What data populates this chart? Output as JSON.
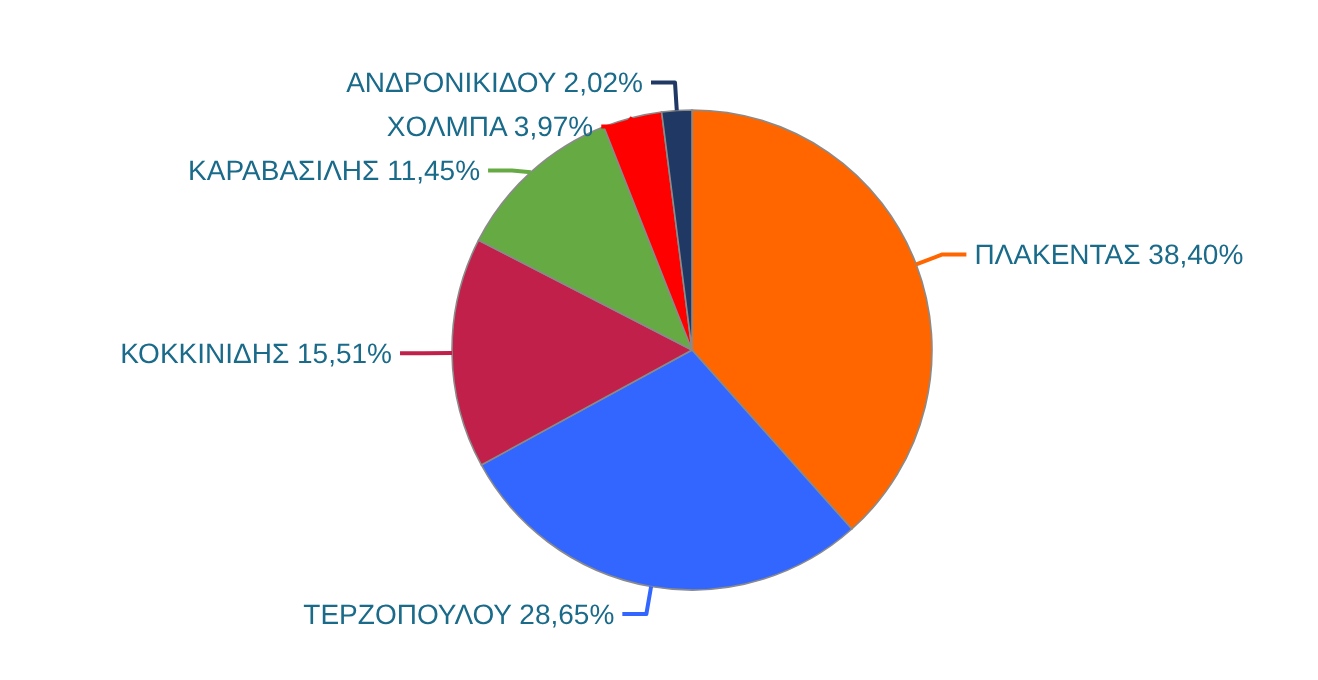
{
  "chart_data": {
    "type": "pie",
    "categories": [
      "ΠΛΑΚΕΝΤΑΣ",
      "ΤΕΡΖΟΠΟΥΛΟΥ",
      "ΚΟΚΚΙΝΙΔΗΣ",
      "ΚΑΡΑΒΑΣΙΛΗΣ",
      "ΧΟΛΜΠΑ",
      "ΑΝΔΡΟΝΙΚΙΔΟΥ"
    ],
    "values": [
      38.4,
      28.65,
      15.51,
      11.45,
      3.97,
      2.02
    ],
    "value_labels": [
      "38,40%",
      "28,65%",
      "15,51%",
      "11,45%",
      "3,97%",
      "2,02%"
    ],
    "colors": [
      "#ff6600",
      "#3366ff",
      "#c0204a",
      "#66aa44",
      "#ff0000",
      "#1f3864"
    ]
  }
}
